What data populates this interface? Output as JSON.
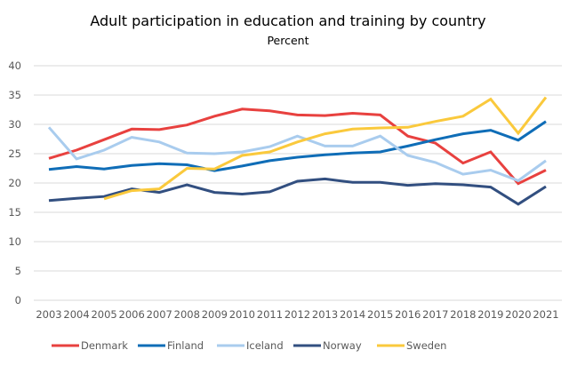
{
  "chart_data": {
    "type": "line",
    "title": "Adult participation in education and training by country",
    "subtitle": "Percent",
    "xlabel": "",
    "ylabel": "",
    "ylim": [
      0,
      40
    ],
    "yticks": [
      "0",
      "5",
      "10",
      "15",
      "20",
      "25",
      "30",
      "35",
      "40"
    ],
    "grid": true,
    "legend_position": "bottom",
    "categories": [
      "2003",
      "2004",
      "2005",
      "2006",
      "2007",
      "2008",
      "2009",
      "2010",
      "2011",
      "2012",
      "2013",
      "2014",
      "2015",
      "2016",
      "2017",
      "2018",
      "2019",
      "2020",
      "2021"
    ],
    "series": [
      {
        "name": "Denmark",
        "color": "#E8413F",
        "values": [
          24.2,
          25.6,
          27.4,
          29.2,
          29.1,
          29.9,
          31.4,
          32.6,
          32.3,
          31.6,
          31.5,
          31.9,
          31.6,
          28.0,
          26.8,
          23.4,
          25.3,
          19.9,
          22.2
        ]
      },
      {
        "name": "Finland",
        "color": "#0F6DB7",
        "values": [
          22.3,
          22.8,
          22.4,
          23.0,
          23.3,
          23.1,
          22.1,
          22.9,
          23.8,
          24.4,
          24.8,
          25.1,
          25.3,
          26.3,
          27.4,
          28.4,
          29.0,
          27.3,
          30.5
        ]
      },
      {
        "name": "Iceland",
        "color": "#A9CCEE",
        "values": [
          29.5,
          24.1,
          25.6,
          27.8,
          27.0,
          25.1,
          25.0,
          25.3,
          26.2,
          28.0,
          26.3,
          26.3,
          28.0,
          24.7,
          23.5,
          21.5,
          22.2,
          20.4,
          23.8
        ]
      },
      {
        "name": "Norway",
        "color": "#324F80",
        "values": [
          17.0,
          17.4,
          17.7,
          19.0,
          18.4,
          19.7,
          18.4,
          18.1,
          18.5,
          20.3,
          20.7,
          20.1,
          20.1,
          19.6,
          19.9,
          19.7,
          19.3,
          16.4,
          19.4
        ]
      },
      {
        "name": "Sweden",
        "color": "#FAC93C",
        "values": [
          null,
          null,
          17.3,
          18.7,
          19.0,
          22.5,
          22.4,
          24.7,
          25.3,
          27.0,
          28.4,
          29.2,
          29.4,
          29.5,
          30.5,
          31.4,
          34.3,
          28.5,
          34.6
        ]
      }
    ]
  }
}
